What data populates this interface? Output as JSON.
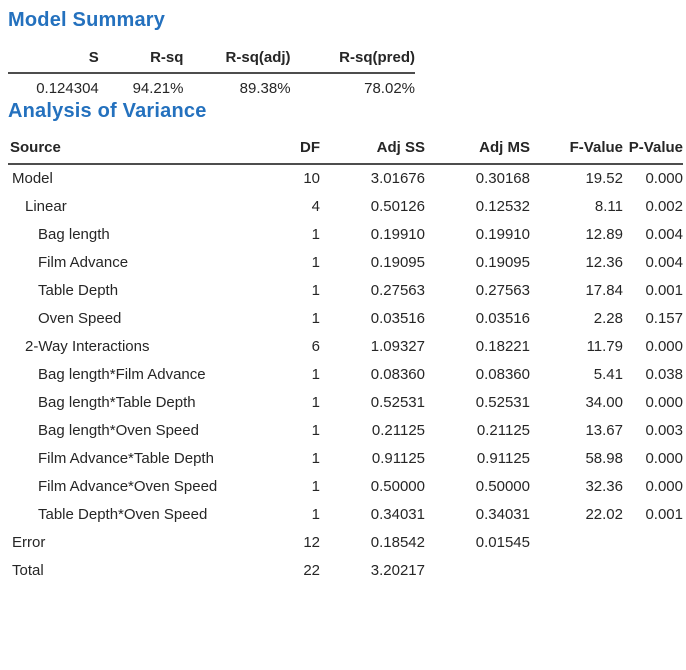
{
  "colors": {
    "heading": "#2471BE",
    "text": "#262626",
    "rule": "#4D4D4D"
  },
  "model_summary": {
    "title": "Model Summary",
    "columns": [
      "S",
      "R-sq",
      "R-sq(adj)",
      "R-sq(pred)"
    ],
    "values": [
      "0.124304",
      "94.21%",
      "89.38%",
      "78.02%"
    ]
  },
  "anova": {
    "title": "Analysis of Variance",
    "columns": [
      "Source",
      "DF",
      "Adj SS",
      "Adj MS",
      "F-Value",
      "P-Value"
    ],
    "rows": [
      {
        "source": "Model",
        "indent": 0,
        "df": "10",
        "adj_ss": "3.01676",
        "adj_ms": "0.30168",
        "f_value": "19.52",
        "p_value": "0.000"
      },
      {
        "source": "Linear",
        "indent": 1,
        "df": "4",
        "adj_ss": "0.50126",
        "adj_ms": "0.12532",
        "f_value": "8.11",
        "p_value": "0.002"
      },
      {
        "source": "Bag length",
        "indent": 2,
        "df": "1",
        "adj_ss": "0.19910",
        "adj_ms": "0.19910",
        "f_value": "12.89",
        "p_value": "0.004"
      },
      {
        "source": "Film Advance",
        "indent": 2,
        "df": "1",
        "adj_ss": "0.19095",
        "adj_ms": "0.19095",
        "f_value": "12.36",
        "p_value": "0.004"
      },
      {
        "source": "Table Depth",
        "indent": 2,
        "df": "1",
        "adj_ss": "0.27563",
        "adj_ms": "0.27563",
        "f_value": "17.84",
        "p_value": "0.001"
      },
      {
        "source": "Oven Speed",
        "indent": 2,
        "df": "1",
        "adj_ss": "0.03516",
        "adj_ms": "0.03516",
        "f_value": "2.28",
        "p_value": "0.157"
      },
      {
        "source": "2-Way Interactions",
        "indent": 1,
        "df": "6",
        "adj_ss": "1.09327",
        "adj_ms": "0.18221",
        "f_value": "11.79",
        "p_value": "0.000"
      },
      {
        "source": "Bag length*Film Advance",
        "indent": 2,
        "df": "1",
        "adj_ss": "0.08360",
        "adj_ms": "0.08360",
        "f_value": "5.41",
        "p_value": "0.038"
      },
      {
        "source": "Bag length*Table Depth",
        "indent": 2,
        "df": "1",
        "adj_ss": "0.52531",
        "adj_ms": "0.52531",
        "f_value": "34.00",
        "p_value": "0.000"
      },
      {
        "source": "Bag length*Oven Speed",
        "indent": 2,
        "df": "1",
        "adj_ss": "0.21125",
        "adj_ms": "0.21125",
        "f_value": "13.67",
        "p_value": "0.003"
      },
      {
        "source": "Film Advance*Table Depth",
        "indent": 2,
        "df": "1",
        "adj_ss": "0.91125",
        "adj_ms": "0.91125",
        "f_value": "58.98",
        "p_value": "0.000"
      },
      {
        "source": "Film Advance*Oven Speed",
        "indent": 2,
        "df": "1",
        "adj_ss": "0.50000",
        "adj_ms": "0.50000",
        "f_value": "32.36",
        "p_value": "0.000"
      },
      {
        "source": "Table Depth*Oven Speed",
        "indent": 2,
        "df": "1",
        "adj_ss": "0.34031",
        "adj_ms": "0.34031",
        "f_value": "22.02",
        "p_value": "0.001"
      },
      {
        "source": "Error",
        "indent": 0,
        "df": "12",
        "adj_ss": "0.18542",
        "adj_ms": "0.01545",
        "f_value": "",
        "p_value": ""
      },
      {
        "source": "Total",
        "indent": 0,
        "df": "22",
        "adj_ss": "3.20217",
        "adj_ms": "",
        "f_value": "",
        "p_value": ""
      }
    ]
  }
}
